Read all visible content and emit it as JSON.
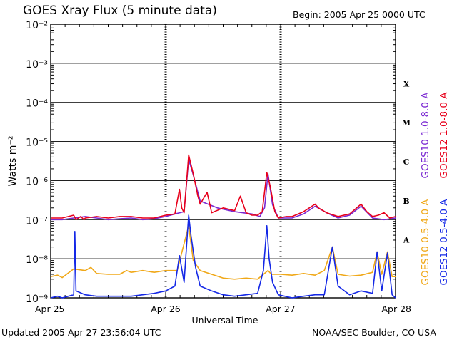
{
  "header": {
    "title": "GOES Xray Flux (5 minute data)",
    "begin": "Begin:  2005 Apr 25 0000 UTC"
  },
  "footer": {
    "updated": "Updated 2005 Apr 27 23:56:04 UTC",
    "credit": "NOAA/SEC Boulder, CO USA"
  },
  "chart_data": {
    "type": "line",
    "xlabel": "Universal Time",
    "ylabel": "Watts m⁻²",
    "yscale": "log",
    "ylim": [
      1e-09,
      0.01
    ],
    "xlim": [
      0,
      3
    ],
    "x_unit": "days since 2005 Apr 25 0000 UTC",
    "x_ticks": [
      {
        "x": 0,
        "label": "Apr 25"
      },
      {
        "x": 1,
        "label": "Apr 26"
      },
      {
        "x": 2,
        "label": "Apr 27"
      },
      {
        "x": 3,
        "label": "Apr 28"
      }
    ],
    "y_ticks": [
      {
        "exp": -2,
        "label": "10⁻²"
      },
      {
        "exp": -3,
        "label": "10⁻³"
      },
      {
        "exp": -4,
        "label": "10⁻⁴"
      },
      {
        "exp": -5,
        "label": "10⁻⁵"
      },
      {
        "exp": -6,
        "label": "10⁻⁶"
      },
      {
        "exp": -7,
        "label": "10⁻⁷"
      },
      {
        "exp": -8,
        "label": "10⁻⁸"
      },
      {
        "exp": -9,
        "label": "10⁻⁹"
      }
    ],
    "flare_classes": [
      {
        "label": "X",
        "band": [
          -4,
          -3
        ]
      },
      {
        "label": "M",
        "band": [
          -5,
          -4
        ]
      },
      {
        "label": "C",
        "band": [
          -6,
          -5
        ]
      },
      {
        "label": "B",
        "band": [
          -7,
          -6
        ]
      },
      {
        "label": "A",
        "band": [
          -8,
          -7
        ]
      }
    ],
    "grid": true,
    "legend_position": "right-vertical",
    "series": [
      {
        "name": "GOES10 1.0-8.0 A",
        "color": "#7a28d2",
        "points": [
          [
            0,
            1e-07
          ],
          [
            0.1,
            1e-07
          ],
          [
            0.2,
            1.1e-07
          ],
          [
            0.3,
            1.2e-07
          ],
          [
            0.4,
            1.1e-07
          ],
          [
            0.5,
            1e-07
          ],
          [
            0.6,
            1.05e-07
          ],
          [
            0.7,
            1.1e-07
          ],
          [
            0.8,
            1e-07
          ],
          [
            0.9,
            1.05e-07
          ],
          [
            1.0,
            1.2e-07
          ],
          [
            1.08,
            1.4e-07
          ],
          [
            1.16,
            1.6e-07
          ],
          [
            1.2,
            3.5e-06
          ],
          [
            1.24,
            1.4e-06
          ],
          [
            1.3,
            3e-07
          ],
          [
            1.45,
            2e-07
          ],
          [
            1.6,
            1.6e-07
          ],
          [
            1.75,
            1.4e-07
          ],
          [
            1.82,
            1.2e-07
          ],
          [
            1.86,
            2e-07
          ],
          [
            1.89,
            1.5e-06
          ],
          [
            1.93,
            2.4e-07
          ],
          [
            1.98,
            1.1e-07
          ],
          [
            2.1,
            1.1e-07
          ],
          [
            2.2,
            1.4e-07
          ],
          [
            2.3,
            2.2e-07
          ],
          [
            2.4,
            1.5e-07
          ],
          [
            2.5,
            1.1e-07
          ],
          [
            2.6,
            1.3e-07
          ],
          [
            2.7,
            2.2e-07
          ],
          [
            2.8,
            1.1e-07
          ],
          [
            2.9,
            1e-07
          ],
          [
            3.0,
            1.1e-07
          ]
        ]
      },
      {
        "name": "GOES12 1.0-8.0 A",
        "color": "#e8001b",
        "points": [
          [
            0,
            1.1e-07
          ],
          [
            0.1,
            1.1e-07
          ],
          [
            0.2,
            1.3e-07
          ],
          [
            0.22,
            1e-07
          ],
          [
            0.26,
            1.2e-07
          ],
          [
            0.29,
            1e-07
          ],
          [
            0.3,
            1.1e-07
          ],
          [
            0.4,
            1.2e-07
          ],
          [
            0.5,
            1.1e-07
          ],
          [
            0.6,
            1.2e-07
          ],
          [
            0.7,
            1.2e-07
          ],
          [
            0.8,
            1.1e-07
          ],
          [
            0.9,
            1.1e-07
          ],
          [
            1.0,
            1.3e-07
          ],
          [
            1.08,
            1.4e-07
          ],
          [
            1.12,
            6e-07
          ],
          [
            1.14,
            2e-07
          ],
          [
            1.16,
            1.5e-07
          ],
          [
            1.2,
            4.5e-06
          ],
          [
            1.24,
            1.5e-06
          ],
          [
            1.28,
            4e-07
          ],
          [
            1.3,
            2.5e-07
          ],
          [
            1.36,
            5e-07
          ],
          [
            1.4,
            1.5e-07
          ],
          [
            1.5,
            2e-07
          ],
          [
            1.6,
            1.7e-07
          ],
          [
            1.65,
            4e-07
          ],
          [
            1.7,
            1.5e-07
          ],
          [
            1.75,
            1.3e-07
          ],
          [
            1.8,
            1.3e-07
          ],
          [
            1.84,
            1.6e-07
          ],
          [
            1.88,
            1.6e-06
          ],
          [
            1.91,
            7e-07
          ],
          [
            1.95,
            1.6e-07
          ],
          [
            1.98,
            1.1e-07
          ],
          [
            2.05,
            1.2e-07
          ],
          [
            2.1,
            1.2e-07
          ],
          [
            2.2,
            1.6e-07
          ],
          [
            2.3,
            2.5e-07
          ],
          [
            2.33,
            2e-07
          ],
          [
            2.4,
            1.5e-07
          ],
          [
            2.5,
            1.2e-07
          ],
          [
            2.6,
            1.4e-07
          ],
          [
            2.7,
            2.5e-07
          ],
          [
            2.75,
            1.6e-07
          ],
          [
            2.8,
            1.2e-07
          ],
          [
            2.85,
            1.3e-07
          ],
          [
            2.9,
            1.5e-07
          ],
          [
            2.95,
            1.1e-07
          ],
          [
            3.0,
            1.2e-07
          ]
        ]
      },
      {
        "name": "GOES10 0.5-4.0 A",
        "color": "#f0a818",
        "points": [
          [
            0,
            3.5e-09
          ],
          [
            0.06,
            3.8e-09
          ],
          [
            0.1,
            3.3e-09
          ],
          [
            0.2,
            5.5e-09
          ],
          [
            0.3,
            5e-09
          ],
          [
            0.35,
            6e-09
          ],
          [
            0.4,
            4.2e-09
          ],
          [
            0.5,
            4e-09
          ],
          [
            0.6,
            4e-09
          ],
          [
            0.66,
            5e-09
          ],
          [
            0.7,
            4.5e-09
          ],
          [
            0.8,
            5e-09
          ],
          [
            0.9,
            4.5e-09
          ],
          [
            1.0,
            5e-09
          ],
          [
            1.1,
            5e-09
          ],
          [
            1.2,
            7e-08
          ],
          [
            1.24,
            9e-09
          ],
          [
            1.3,
            5e-09
          ],
          [
            1.5,
            3.2e-09
          ],
          [
            1.6,
            3e-09
          ],
          [
            1.7,
            3.2e-09
          ],
          [
            1.8,
            3e-09
          ],
          [
            1.89,
            5e-09
          ],
          [
            1.92,
            4e-09
          ],
          [
            2.0,
            4e-09
          ],
          [
            2.1,
            3.8e-09
          ],
          [
            2.2,
            4.2e-09
          ],
          [
            2.3,
            3.8e-09
          ],
          [
            2.38,
            5e-09
          ],
          [
            2.45,
            2e-08
          ],
          [
            2.5,
            4e-09
          ],
          [
            2.6,
            3.6e-09
          ],
          [
            2.7,
            3.8e-09
          ],
          [
            2.8,
            4.5e-09
          ],
          [
            2.84,
            1.5e-08
          ],
          [
            2.88,
            4e-09
          ],
          [
            2.93,
            1.5e-08
          ],
          [
            2.97,
            3.5e-09
          ],
          [
            3.0,
            3.5e-09
          ]
        ]
      },
      {
        "name": "GOES12 0.5-4.0 A",
        "color": "#1428e6",
        "points": [
          [
            0,
            1e-09
          ],
          [
            0.06,
            1.1e-09
          ],
          [
            0.1,
            1e-09
          ],
          [
            0.2,
            1.2e-09
          ],
          [
            0.21,
            5e-08
          ],
          [
            0.22,
            1.5e-09
          ],
          [
            0.3,
            1.2e-09
          ],
          [
            0.4,
            1.1e-09
          ],
          [
            0.5,
            1.1e-09
          ],
          [
            0.6,
            1.1e-09
          ],
          [
            0.7,
            1.1e-09
          ],
          [
            0.8,
            1.2e-09
          ],
          [
            0.9,
            1.3e-09
          ],
          [
            1.0,
            1.5e-09
          ],
          [
            1.08,
            2e-09
          ],
          [
            1.12,
            1.2e-08
          ],
          [
            1.16,
            2.5e-09
          ],
          [
            1.19,
            5e-08
          ],
          [
            1.2,
            1.3e-07
          ],
          [
            1.22,
            4e-08
          ],
          [
            1.26,
            6e-09
          ],
          [
            1.3,
            2e-09
          ],
          [
            1.4,
            1.5e-09
          ],
          [
            1.5,
            1.2e-09
          ],
          [
            1.6,
            1.1e-09
          ],
          [
            1.7,
            1.2e-09
          ],
          [
            1.8,
            1.3e-09
          ],
          [
            1.85,
            5e-09
          ],
          [
            1.88,
            7e-08
          ],
          [
            1.9,
            1e-08
          ],
          [
            1.93,
            2.5e-09
          ],
          [
            1.98,
            1.2e-09
          ],
          [
            2.1,
            1e-09
          ],
          [
            2.2,
            1.1e-09
          ],
          [
            2.3,
            1.2e-09
          ],
          [
            2.38,
            1.2e-09
          ],
          [
            2.45,
            2e-08
          ],
          [
            2.5,
            2e-09
          ],
          [
            2.6,
            1.2e-09
          ],
          [
            2.7,
            1.5e-09
          ],
          [
            2.8,
            1.3e-09
          ],
          [
            2.84,
            1.5e-08
          ],
          [
            2.88,
            1.5e-09
          ],
          [
            2.93,
            1.4e-08
          ],
          [
            2.97,
            1.2e-09
          ],
          [
            3.0,
            1e-09
          ]
        ]
      }
    ]
  }
}
